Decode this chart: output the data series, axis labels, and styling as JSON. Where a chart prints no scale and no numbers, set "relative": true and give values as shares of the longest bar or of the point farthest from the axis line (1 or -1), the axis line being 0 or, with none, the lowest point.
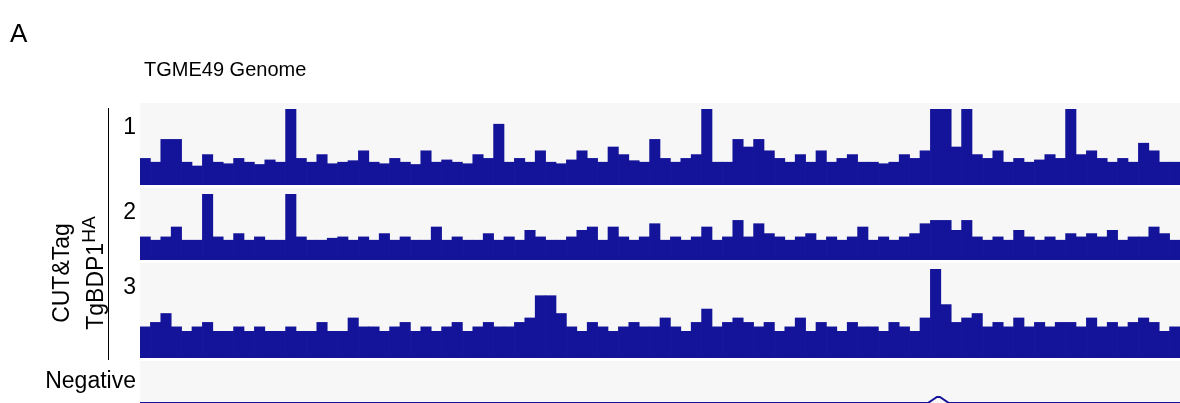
{
  "chart_data": [
    {
      "type": "bar",
      "title": "TGME49 Genome",
      "annotations": [
        "A",
        "CUT&Tag\nTgBDP1$^{HA}$"
      ],
      "ylabel": "1",
      "relative": true,
      "color": "#14149a",
      "categories": [
        null,
        null,
        null,
        null,
        null,
        null,
        null,
        null,
        null,
        null,
        null,
        null,
        null,
        null,
        null,
        null,
        null,
        null,
        null,
        null,
        null,
        null,
        null,
        null,
        null,
        null,
        null,
        null,
        null,
        null,
        null,
        null,
        null,
        null,
        null,
        null,
        null,
        null,
        null,
        null,
        null,
        null,
        null,
        null,
        null,
        null,
        null,
        null,
        null,
        null,
        null,
        null,
        null,
        null,
        null,
        null,
        null,
        null,
        null,
        null,
        null,
        null,
        null,
        null,
        null,
        null,
        null,
        null,
        null,
        null,
        null,
        null,
        null,
        null,
        null,
        null,
        null,
        null,
        null,
        null,
        null,
        null,
        null,
        null,
        null,
        null,
        null,
        null,
        null,
        null,
        null,
        null,
        null,
        null,
        null,
        null,
        null,
        null,
        null,
        null
      ],
      "values": [
        0.35,
        0.3,
        0.6,
        0.6,
        0.3,
        0.25,
        0.4,
        0.3,
        0.28,
        0.35,
        0.3,
        0.27,
        0.33,
        0.3,
        1.0,
        0.35,
        0.3,
        0.4,
        0.28,
        0.3,
        0.32,
        0.45,
        0.3,
        0.28,
        0.35,
        0.3,
        0.27,
        0.45,
        0.3,
        0.33,
        0.3,
        0.28,
        0.4,
        0.35,
        0.8,
        0.3,
        0.35,
        0.3,
        0.45,
        0.3,
        0.28,
        0.33,
        0.45,
        0.35,
        0.3,
        0.5,
        0.4,
        0.32,
        0.3,
        0.6,
        0.35,
        0.3,
        0.35,
        0.4,
        1.0,
        0.3,
        0.3,
        0.6,
        0.5,
        0.6,
        0.45,
        0.35,
        0.3,
        0.4,
        0.3,
        0.45,
        0.3,
        0.35,
        0.4,
        0.3,
        0.3,
        0.28,
        0.3,
        0.4,
        0.35,
        0.45,
        1.0,
        1.0,
        0.5,
        1.0,
        0.4,
        0.35,
        0.45,
        0.3,
        0.35,
        0.3,
        0.33,
        0.4,
        0.35,
        1.0,
        0.4,
        0.45,
        0.35,
        0.3,
        0.35,
        0.3,
        0.55,
        0.45,
        0.3,
        0.3
      ]
    },
    {
      "type": "bar",
      "ylabel": "2",
      "relative": true,
      "color": "#14149a",
      "categories": [
        null,
        null,
        null,
        null,
        null,
        null,
        null,
        null,
        null,
        null,
        null,
        null,
        null,
        null,
        null,
        null,
        null,
        null,
        null,
        null,
        null,
        null,
        null,
        null,
        null,
        null,
        null,
        null,
        null,
        null,
        null,
        null,
        null,
        null,
        null,
        null,
        null,
        null,
        null,
        null,
        null,
        null,
        null,
        null,
        null,
        null,
        null,
        null,
        null,
        null,
        null,
        null,
        null,
        null,
        null,
        null,
        null,
        null,
        null,
        null,
        null,
        null,
        null,
        null,
        null,
        null,
        null,
        null,
        null,
        null,
        null,
        null,
        null,
        null,
        null,
        null,
        null,
        null,
        null,
        null,
        null,
        null,
        null,
        null,
        null,
        null,
        null,
        null,
        null,
        null,
        null,
        null,
        null,
        null,
        null,
        null,
        null,
        null,
        null,
        null
      ],
      "values": [
        0.35,
        0.3,
        0.35,
        0.5,
        0.3,
        0.3,
        1.0,
        0.35,
        0.3,
        0.4,
        0.3,
        0.35,
        0.3,
        0.3,
        1.0,
        0.35,
        0.3,
        0.3,
        0.33,
        0.35,
        0.3,
        0.35,
        0.3,
        0.4,
        0.3,
        0.35,
        0.3,
        0.3,
        0.5,
        0.3,
        0.35,
        0.3,
        0.3,
        0.4,
        0.3,
        0.35,
        0.3,
        0.45,
        0.35,
        0.3,
        0.3,
        0.35,
        0.45,
        0.5,
        0.3,
        0.5,
        0.35,
        0.3,
        0.35,
        0.55,
        0.3,
        0.35,
        0.3,
        0.35,
        0.5,
        0.3,
        0.35,
        0.6,
        0.35,
        0.55,
        0.4,
        0.35,
        0.3,
        0.35,
        0.4,
        0.3,
        0.35,
        0.3,
        0.35,
        0.5,
        0.3,
        0.35,
        0.3,
        0.35,
        0.4,
        0.55,
        0.6,
        0.6,
        0.45,
        0.6,
        0.35,
        0.3,
        0.35,
        0.3,
        0.45,
        0.35,
        0.3,
        0.35,
        0.3,
        0.4,
        0.35,
        0.4,
        0.35,
        0.45,
        0.3,
        0.35,
        0.35,
        0.5,
        0.4,
        0.3
      ]
    },
    {
      "type": "bar",
      "ylabel": "3",
      "relative": true,
      "color": "#14149a",
      "categories": [
        null,
        null,
        null,
        null,
        null,
        null,
        null,
        null,
        null,
        null,
        null,
        null,
        null,
        null,
        null,
        null,
        null,
        null,
        null,
        null,
        null,
        null,
        null,
        null,
        null,
        null,
        null,
        null,
        null,
        null,
        null,
        null,
        null,
        null,
        null,
        null,
        null,
        null,
        null,
        null,
        null,
        null,
        null,
        null,
        null,
        null,
        null,
        null,
        null,
        null,
        null,
        null,
        null,
        null,
        null,
        null,
        null,
        null,
        null,
        null,
        null,
        null,
        null,
        null,
        null,
        null,
        null,
        null,
        null,
        null,
        null,
        null,
        null,
        null,
        null,
        null,
        null,
        null,
        null,
        null,
        null,
        null,
        null,
        null,
        null,
        null,
        null,
        null,
        null,
        null,
        null,
        null,
        null,
        null,
        null,
        null,
        null,
        null,
        null,
        null
      ],
      "values": [
        0.35,
        0.4,
        0.5,
        0.35,
        0.3,
        0.35,
        0.4,
        0.3,
        0.3,
        0.35,
        0.3,
        0.35,
        0.3,
        0.3,
        0.35,
        0.3,
        0.3,
        0.4,
        0.3,
        0.3,
        0.45,
        0.35,
        0.35,
        0.3,
        0.35,
        0.4,
        0.3,
        0.35,
        0.3,
        0.35,
        0.4,
        0.3,
        0.35,
        0.4,
        0.35,
        0.35,
        0.4,
        0.45,
        0.7,
        0.7,
        0.5,
        0.35,
        0.3,
        0.4,
        0.35,
        0.3,
        0.35,
        0.4,
        0.35,
        0.35,
        0.45,
        0.35,
        0.3,
        0.4,
        0.55,
        0.35,
        0.4,
        0.45,
        0.4,
        0.35,
        0.4,
        0.3,
        0.35,
        0.45,
        0.3,
        0.4,
        0.35,
        0.3,
        0.4,
        0.35,
        0.35,
        0.3,
        0.4,
        0.35,
        0.3,
        0.45,
        1.0,
        0.6,
        0.4,
        0.45,
        0.5,
        0.35,
        0.4,
        0.35,
        0.45,
        0.35,
        0.4,
        0.35,
        0.4,
        0.4,
        0.35,
        0.45,
        0.35,
        0.4,
        0.35,
        0.4,
        0.45,
        0.4,
        0.3,
        0.35
      ]
    },
    {
      "type": "line",
      "ylabel": "Negative",
      "relative": true,
      "color": "#14149a",
      "categories": [
        null,
        null,
        null,
        null,
        null,
        null,
        null,
        null,
        null,
        null,
        null,
        null,
        null,
        null,
        null,
        null,
        null,
        null,
        null,
        null,
        null,
        null,
        null,
        null,
        null,
        null,
        null,
        null,
        null,
        null,
        null,
        null,
        null,
        null,
        null,
        null,
        null,
        null,
        null,
        null,
        null,
        null,
        null,
        null,
        null,
        null,
        null,
        null,
        null,
        null,
        null,
        null,
        null,
        null,
        null,
        null,
        null,
        null,
        null,
        null,
        null,
        null,
        null,
        null,
        null,
        null,
        null,
        null,
        null,
        null,
        null,
        null,
        null,
        null,
        null,
        null,
        null,
        null,
        null,
        null,
        null,
        null,
        null,
        null,
        null,
        null,
        null,
        null,
        null,
        null,
        null,
        null,
        null,
        null,
        null,
        null,
        null,
        null,
        null,
        null
      ],
      "values": [
        0,
        0,
        0,
        0,
        0,
        0,
        0,
        0,
        0,
        0,
        0,
        0,
        0,
        0,
        0,
        0,
        0,
        0,
        0,
        0,
        0,
        0,
        0,
        0,
        0,
        0,
        0,
        0,
        0,
        0,
        0,
        0,
        0,
        0,
        0,
        0,
        0,
        0,
        0,
        0,
        0,
        0,
        0,
        0,
        0,
        0,
        0,
        0,
        0,
        0,
        0,
        0,
        0,
        0,
        0,
        0,
        0,
        0,
        0,
        0,
        0,
        0,
        0,
        0,
        0,
        0,
        0,
        0,
        0,
        0,
        0,
        0,
        0,
        0,
        0,
        0,
        1,
        0,
        0,
        0,
        0,
        0,
        0,
        0,
        0,
        0,
        0,
        0,
        0,
        0,
        0,
        0,
        0,
        0,
        0,
        0,
        0,
        0,
        0,
        0
      ]
    }
  ]
}
